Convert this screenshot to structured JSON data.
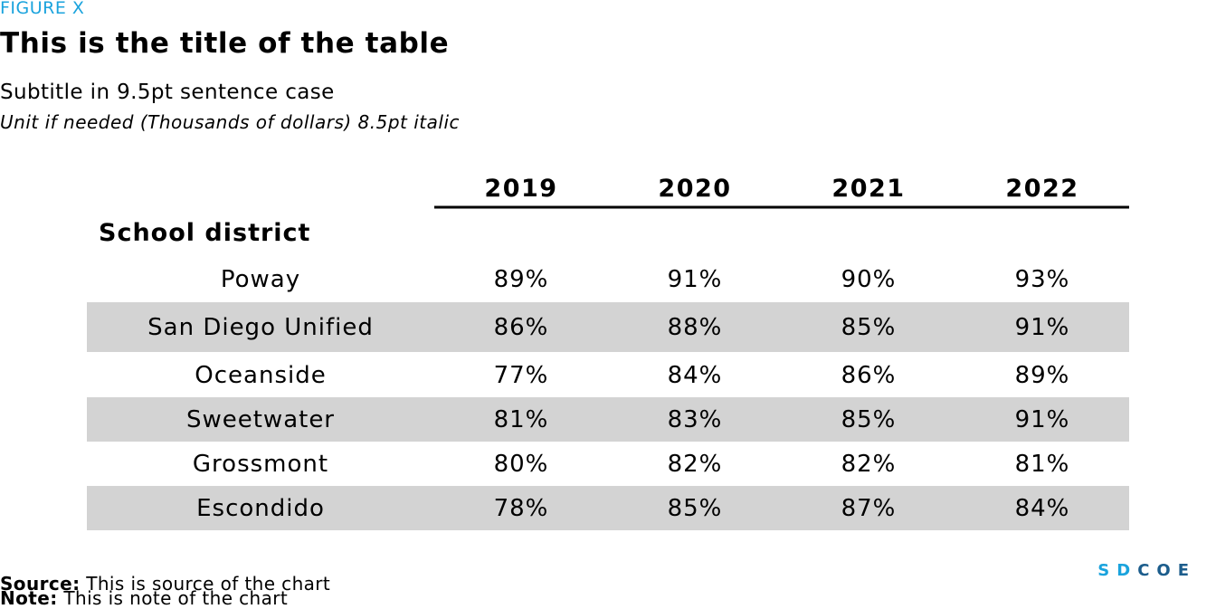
{
  "header": {
    "figure_label": "FIGURE X",
    "title": "This is the title of the table",
    "subtitle": "Subtitle in 9.5pt sentence case",
    "unit": "Unit if needed (Thousands of dollars) 8.5pt italic"
  },
  "chart_data": {
    "type": "table",
    "stub_header": "School district",
    "columns": [
      "2019",
      "2020",
      "2021",
      "2022"
    ],
    "rows": [
      {
        "label": "Poway",
        "values": [
          "89%",
          "91%",
          "90%",
          "93%"
        ]
      },
      {
        "label": "San Diego Unified",
        "values": [
          "86%",
          "88%",
          "85%",
          "91%"
        ]
      },
      {
        "label": "Oceanside",
        "values": [
          "77%",
          "84%",
          "86%",
          "89%"
        ]
      },
      {
        "label": "Sweetwater",
        "values": [
          "81%",
          "83%",
          "85%",
          "91%"
        ]
      },
      {
        "label": "Grossmont",
        "values": [
          "80%",
          "82%",
          "82%",
          "81%"
        ]
      },
      {
        "label": "Escondido",
        "values": [
          "78%",
          "85%",
          "87%",
          "84%"
        ]
      }
    ],
    "banded_rows": "alternate rows shaded",
    "colors": {
      "band": "#d3d3d3",
      "rule": "#000000"
    }
  },
  "footer": {
    "source_label": "Source:",
    "source_text": "This is source of the chart",
    "note_label": "Note:",
    "note_text": "This is note of the chart"
  },
  "logo": {
    "sd": "SD",
    "coe": "COE",
    "colors": {
      "sd": "#1aa3dd",
      "coe": "#1c5d8c"
    }
  }
}
